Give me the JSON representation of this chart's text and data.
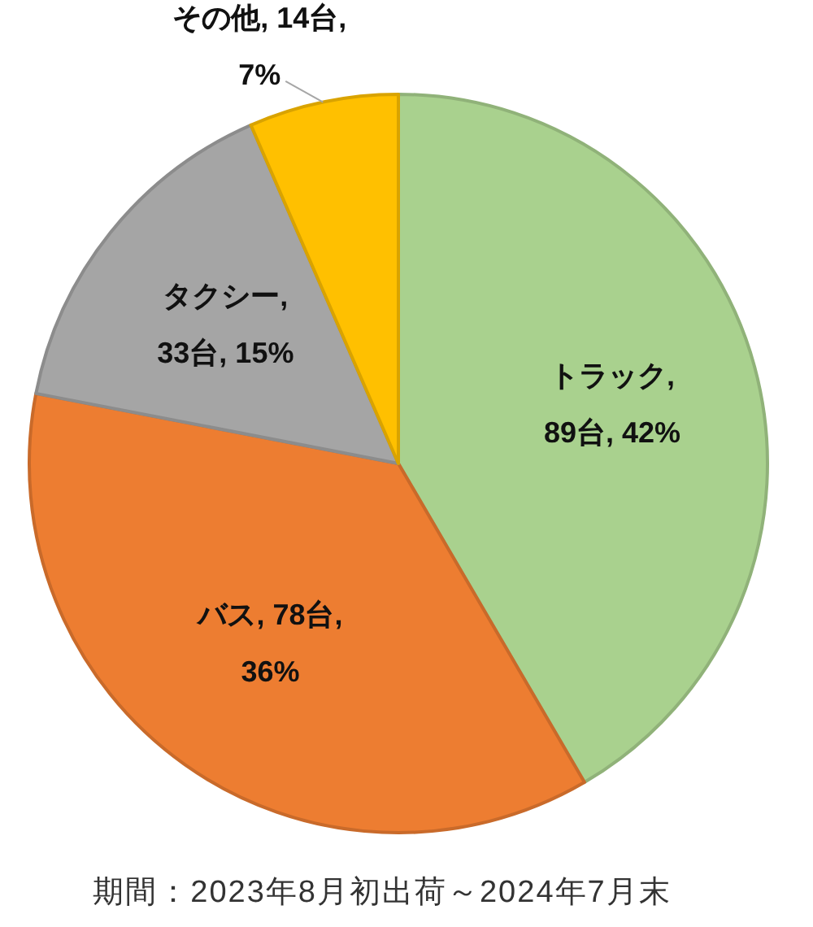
{
  "chart_data": {
    "type": "pie",
    "categories": [
      "トラック",
      "バス",
      "タクシー",
      "その他"
    ],
    "values": [
      89,
      78,
      33,
      14
    ],
    "value_labels": [
      ", 89台, 42%",
      ", 78台, 36%",
      ", 33台, 15%",
      ", 14台, 7%"
    ],
    "colors": [
      "#a9d18e",
      "#ed7d31",
      "#a5a5a5",
      "#ffc000"
    ],
    "annotations": [
      "期間：2023年8月初出荷～2024年7月末"
    ]
  }
}
